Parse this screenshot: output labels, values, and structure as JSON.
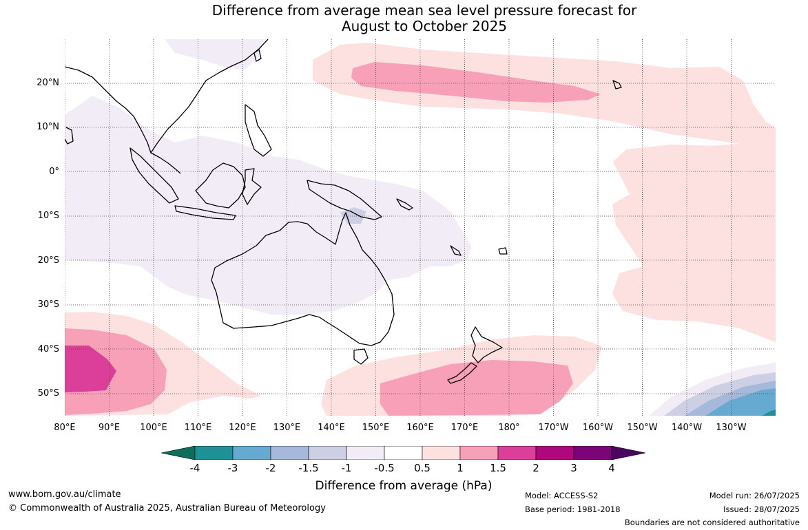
{
  "title_line1": "Difference from average mean sea level pressure forecast for",
  "title_line2": "August to October 2025",
  "lat_labels": [
    "20°N",
    "10°N",
    "0°",
    "10°S",
    "20°S",
    "30°S",
    "40°S",
    "50°S"
  ],
  "lon_labels": [
    "80°E",
    "90°E",
    "100°E",
    "110°E",
    "120°E",
    "130°E",
    "140°E",
    "150°E",
    "160°E",
    "170°E",
    "180°",
    "170°W",
    "160°W",
    "150°W",
    "140°W",
    "130°W"
  ],
  "legend": {
    "title": "Difference from average (hPa)",
    "ticks": [
      "-4",
      "-3",
      "-2",
      "-1.5",
      "-1",
      "-0.5",
      "0.5",
      "1",
      "1.5",
      "2",
      "3",
      "4"
    ],
    "colors": [
      "#0c6e5c",
      "#1d9196",
      "#66aad2",
      "#a6b9da",
      "#cdd0e5",
      "#f1ecf6",
      "#ffffff",
      "#fde0e0",
      "#f8a0b8",
      "#db3f9a",
      "#b1077c",
      "#7b0479",
      "#4a0560"
    ]
  },
  "footer": {
    "url": "www.bom.gov.au/climate",
    "copyright": "© Commonwealth of Australia 2025, Australian Bureau of Meteorology",
    "model": "Model: ACCESS-S2",
    "base_period": "Base period: 1981-2018",
    "model_run": "Model run: 26/07/2025",
    "issued": "Issued: 28/07/2025",
    "disclaimer": "Boundaries are not considered authoritative"
  }
}
